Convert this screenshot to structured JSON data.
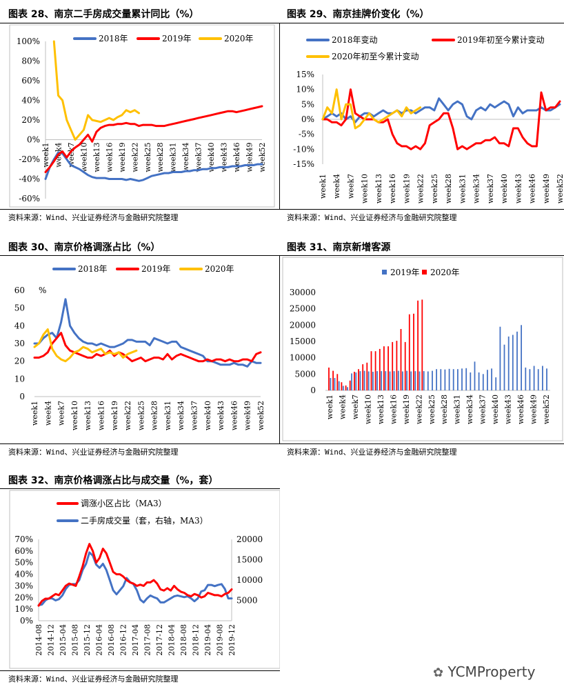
{
  "source_note": "资料来源：Wind、兴业证券经济与金融研究院整理",
  "watermark": "YCMProperty",
  "colors": {
    "blue": "#4472C4",
    "red": "#FF0000",
    "yellow": "#FFC000"
  },
  "figures": [
    {
      "title": "图表 28、南京二手房成交量累计同比（%）"
    },
    {
      "title": "图表 29、南京挂牌价变化（%）"
    },
    {
      "title": "图表 30、南京价格调涨占比（%）"
    },
    {
      "title": "图表 31、南京新增客源"
    },
    {
      "title": "图表 32、南京价格调涨占比与成交量（%，套）"
    }
  ],
  "chart_data": [
    {
      "type": "line",
      "ylim": [
        -60,
        100
      ],
      "yticks": [
        "100%",
        "80%",
        "60%",
        "40%",
        "20%",
        "0%",
        "-20%",
        "-40%",
        "-60%"
      ],
      "x_labels": [
        "week1",
        "week4",
        "week7",
        "week10",
        "week13",
        "week16",
        "week19",
        "week22",
        "week25",
        "week28",
        "week31",
        "week34",
        "week37",
        "week40",
        "week43",
        "week46",
        "week49",
        "week52"
      ],
      "series": [
        {
          "name": "2018年",
          "color": "blue",
          "start": 1,
          "values": [
            -40,
            -28,
            -20,
            -13,
            -14,
            -20,
            -26,
            -28,
            -30,
            -33,
            -36,
            -38,
            -39,
            -39,
            -39,
            -40,
            -40,
            -40,
            -40,
            -41,
            -40,
            -41,
            -42,
            -41,
            -39,
            -37,
            -36,
            -35,
            -34,
            -34,
            -33,
            -33,
            -33,
            -32,
            -32,
            -31,
            -31,
            -30,
            -30,
            -29,
            -29,
            -28,
            -28,
            -28,
            -27,
            -27,
            -27,
            -26,
            -26,
            -26,
            -25,
            -25
          ]
        },
        {
          "name": "2019年",
          "color": "red",
          "start": 1,
          "values": [
            -33,
            -28,
            -22,
            -15,
            -12,
            -18,
            -12,
            -8,
            -5,
            0,
            5,
            -2,
            8,
            12,
            14,
            15,
            15,
            16,
            16,
            17,
            16,
            16,
            14,
            15,
            15,
            15,
            14,
            14,
            14,
            15,
            16,
            17,
            18,
            19,
            20,
            21,
            22,
            23,
            24,
            25,
            26,
            27,
            28,
            29,
            29,
            28,
            29,
            30,
            31,
            32,
            33,
            34
          ]
        },
        {
          "name": "2020年",
          "color": "yellow",
          "start": 3,
          "values": [
            100,
            45,
            40,
            20,
            10,
            0,
            5,
            10,
            25,
            20,
            19,
            18,
            20,
            22,
            20,
            23,
            25,
            30,
            28,
            30,
            27
          ]
        }
      ]
    },
    {
      "type": "line",
      "ylim": [
        -15,
        15
      ],
      "yticks": [
        "15%",
        "10%",
        "5%",
        "0%",
        "-5%",
        "-10%",
        "-15%"
      ],
      "x_labels": [
        "week1",
        "week4",
        "week7",
        "week10",
        "week13",
        "week16",
        "week19",
        "week22",
        "week25",
        "week28",
        "week31",
        "week34",
        "week37",
        "week40",
        "week43",
        "week46",
        "week49",
        "week52"
      ],
      "series": [
        {
          "name": "2018年变动",
          "color": "blue",
          "start": 1,
          "values": [
            0,
            1,
            2,
            1,
            2,
            0,
            1,
            -1,
            1,
            2,
            2,
            1,
            2,
            3,
            2,
            2,
            3,
            2,
            3,
            3,
            2,
            3,
            4,
            4,
            3,
            7,
            5,
            3,
            5,
            6,
            5,
            1,
            0,
            3,
            4,
            3,
            5,
            4,
            5,
            6,
            5,
            1,
            4,
            2,
            3,
            3,
            3,
            4,
            3,
            3,
            4,
            5
          ]
        },
        {
          "name": "2019年初至今累计变动",
          "color": "red",
          "start": 1,
          "values": [
            0,
            0,
            -1,
            -1,
            -2,
            0,
            10,
            2,
            1,
            0,
            0,
            0,
            -1,
            -1,
            0,
            -5,
            -8,
            -9,
            -9,
            -10,
            -9,
            -10,
            -8,
            -2,
            -1,
            0,
            2,
            2,
            -3,
            -10,
            -9,
            -10,
            -9,
            -8,
            -8,
            -7,
            -7,
            -6,
            -8,
            -8,
            -9,
            -3,
            -3,
            -6,
            -8,
            -9,
            -9,
            9,
            3,
            4,
            4,
            6
          ]
        },
        {
          "name": "2020年初至今累计变动",
          "color": "yellow",
          "start": 1,
          "values": [
            0,
            4,
            2,
            10,
            0,
            5,
            5,
            -3,
            -2,
            0,
            2,
            0,
            -1,
            0,
            1,
            2,
            3,
            1,
            4,
            2,
            3,
            4
          ]
        }
      ]
    },
    {
      "type": "line",
      "ylim": [
        0,
        60
      ],
      "ylabel": "%",
      "yticks": [
        "60",
        "50",
        "40",
        "30",
        "20",
        "10",
        "0"
      ],
      "x_labels": [
        "week1",
        "week4",
        "week7",
        "week10",
        "week13",
        "week16",
        "week19",
        "week22",
        "week25",
        "week28",
        "week31",
        "week34",
        "week37",
        "week40",
        "week43",
        "week46",
        "week49",
        "week52"
      ],
      "series": [
        {
          "name": "2018年",
          "color": "blue",
          "start": 1,
          "values": [
            30,
            30,
            33,
            35,
            36,
            33,
            42,
            55,
            40,
            36,
            33,
            31,
            30,
            30,
            29,
            30,
            29,
            28,
            28,
            29,
            30,
            32,
            32,
            31,
            31,
            31,
            29,
            33,
            32,
            31,
            30,
            31,
            31,
            28,
            27,
            26,
            25,
            24,
            23,
            20,
            20,
            19,
            18,
            18,
            18,
            19,
            18,
            18,
            17,
            20,
            19,
            19
          ]
        },
        {
          "name": "2019年",
          "color": "red",
          "start": 1,
          "values": [
            22,
            22,
            23,
            25,
            30,
            33,
            36,
            29,
            26,
            25,
            24,
            23,
            22,
            22,
            24,
            23,
            24,
            26,
            23,
            25,
            24,
            22,
            20,
            21,
            22,
            20,
            21,
            22,
            22,
            21,
            24,
            21,
            23,
            24,
            23,
            22,
            21,
            20,
            20,
            21,
            20,
            21,
            21,
            20,
            21,
            20,
            20,
            21,
            21,
            20,
            24,
            25
          ]
        },
        {
          "name": "2020年",
          "color": "yellow",
          "start": 1,
          "values": [
            28,
            30,
            35,
            38,
            27,
            23,
            21,
            20,
            22,
            25,
            26,
            28,
            27,
            25,
            26,
            27,
            24,
            25,
            24,
            25,
            22,
            24,
            25,
            26
          ]
        }
      ]
    },
    {
      "type": "bar",
      "ylim": [
        0,
        30000
      ],
      "yticks": [
        "30000",
        "25000",
        "20000",
        "15000",
        "10000",
        "5000",
        "0"
      ],
      "x_labels": [
        "week1",
        "week4",
        "week7",
        "week10",
        "week13",
        "week16",
        "week19",
        "week22",
        "week25",
        "week28",
        "week31",
        "week34",
        "week37",
        "week40",
        "week43",
        "week46",
        "week49",
        "week52"
      ],
      "series": [
        {
          "name": "2019年",
          "color": "blue",
          "values": [
            3800,
            3800,
            2800,
            1400,
            1000,
            5200,
            5500,
            5900,
            6000,
            5800,
            5700,
            5900,
            5900,
            5900,
            5800,
            5900,
            6000,
            5800,
            6000,
            5800,
            5900,
            5800,
            5900,
            5800,
            6000,
            6500,
            6500,
            6400,
            6600,
            6500,
            6500,
            6700,
            6800,
            5500,
            8800,
            5500,
            5000,
            6300,
            6700,
            4000,
            19500,
            14000,
            16500,
            17000,
            18000,
            20000,
            7000,
            6500,
            7500,
            6500,
            7500,
            6700
          ]
        },
        {
          "name": "2020年",
          "color": "red",
          "values": [
            7000,
            6000,
            5000,
            2500,
            1500,
            3000,
            5700,
            6500,
            8000,
            8500,
            12000,
            12000,
            12700,
            13500,
            13500,
            14800,
            15200,
            18800,
            14800,
            23300,
            23500,
            27500,
            27800
          ]
        }
      ]
    },
    {
      "type": "line",
      "ylim_left": [
        0,
        70
      ],
      "ylim_right": [
        0,
        20000
      ],
      "yticks_left": [
        "70%",
        "60%",
        "50%",
        "40%",
        "30%",
        "20%",
        "10%",
        "0%"
      ],
      "yticks_right": [
        "20000",
        "15000",
        "10000",
        "5000"
      ],
      "x_labels": [
        "2014-08",
        "2014-12",
        "2015-04",
        "2015-08",
        "2015-12",
        "2016-04",
        "2016-08",
        "2016-12",
        "2017-04",
        "2017-08",
        "2017-12",
        "2018-04",
        "2018-08",
        "2018-12",
        "2019-04",
        "2019-08",
        "2019-12"
      ],
      "series": [
        {
          "name": "调涨小区占比（MA3）",
          "color": "red",
          "axis": "left",
          "values": [
            13,
            17,
            19,
            19,
            21,
            23,
            22,
            26,
            30,
            32,
            31,
            30,
            38,
            47,
            58,
            66,
            60,
            50,
            54,
            62,
            58,
            50,
            42,
            40,
            40,
            38,
            35,
            33,
            32,
            30,
            31,
            30,
            33,
            33,
            35,
            32,
            27,
            26,
            28,
            26,
            30,
            27,
            25,
            24,
            22,
            21,
            23,
            22,
            20,
            21,
            24,
            23,
            22,
            22,
            21,
            23,
            24,
            27
          ]
        },
        {
          "name": "二手房成交量（套，右轴，MA3）",
          "color": "blue",
          "axis": "right",
          "values": [
            3800,
            4000,
            5000,
            5500,
            5500,
            5000,
            5300,
            6200,
            7800,
            8800,
            9000,
            9000,
            10000,
            12500,
            14000,
            16800,
            16000,
            13800,
            13000,
            14000,
            12500,
            10000,
            7500,
            6500,
            7500,
            8500,
            10500,
            9500,
            9000,
            7500,
            5200,
            4500,
            5500,
            6200,
            5800,
            5500,
            4500,
            4500,
            5000,
            5500,
            6000,
            6200,
            6000,
            5800,
            6000,
            5500,
            4800,
            5500,
            7200,
            7500,
            8800,
            8800,
            8500,
            8800,
            9000,
            7800,
            5500,
            5500
          ]
        }
      ]
    }
  ]
}
